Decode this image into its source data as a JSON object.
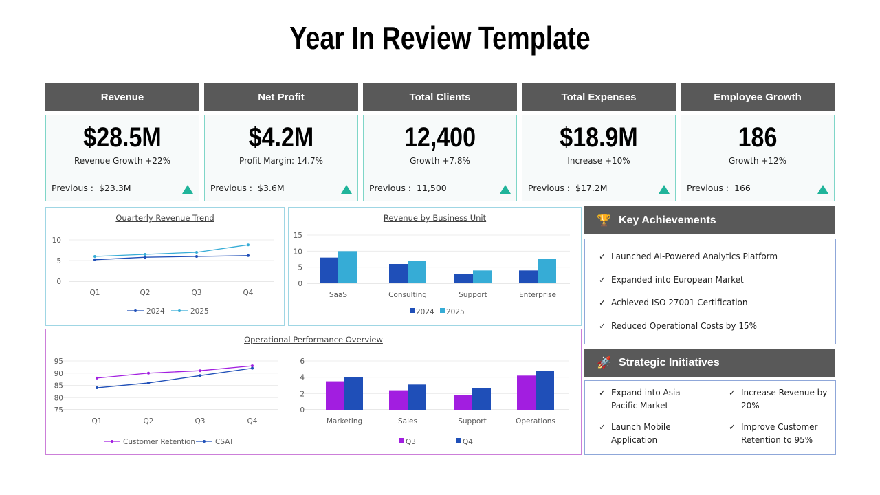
{
  "title": "Year In Review Template",
  "kpis": [
    {
      "label": "Revenue",
      "value": "$28.5M",
      "sub": "Revenue Growth +22%",
      "prev_label": "Previous :",
      "prev": "$23.3M",
      "trend": "up"
    },
    {
      "label": "Net Profit",
      "value": "$4.2M",
      "sub": "Profit Margin: 14.7%",
      "prev_label": "Previous :",
      "prev": "$3.6M",
      "trend": "up"
    },
    {
      "label": "Total Clients",
      "value": "12,400",
      "sub": "Growth +7.8%",
      "prev_label": "Previous :",
      "prev": "11,500",
      "trend": "up"
    },
    {
      "label": "Total Expenses",
      "value": "$18.9M",
      "sub": "Increase +10%",
      "prev_label": "Previous :",
      "prev": "$17.2M",
      "trend": "up"
    },
    {
      "label": "Employee Growth",
      "value": "186",
      "sub": "Growth +12%",
      "prev_label": "Previous :",
      "prev": "166",
      "trend": "up"
    }
  ],
  "colors": {
    "header": "#595959",
    "accent_up": "#20b49a",
    "blue_dark": "#1f4fb8",
    "blue_light": "#36acd6",
    "purple": "#a21ee0"
  },
  "achievements": {
    "title": "Key Achievements",
    "icon": "trophy-icon",
    "items": [
      "Launched AI-Powered Analytics Platform",
      "Expanded into European Market",
      "Achieved ISO 27001 Certification",
      "Reduced Operational Costs by 15%"
    ]
  },
  "initiatives": {
    "title": "Strategic Initiatives",
    "icon": "rocket-icon",
    "items": [
      "Expand into Asia-Pacific Market",
      "Increase Revenue by 20%",
      "Launch Mobile Application",
      "Improve Customer Retention to 95%"
    ]
  },
  "operational_title": "Operational Performance Overview",
  "chart_data": [
    {
      "type": "line",
      "title": "Quarterly Revenue Trend",
      "categories": [
        "Q1",
        "Q2",
        "Q3",
        "Q4"
      ],
      "ylim": [
        0,
        10
      ],
      "yticks": [
        0,
        5,
        10
      ],
      "grid": true,
      "legend": "bottom",
      "series": [
        {
          "name": "2024",
          "values": [
            5.2,
            5.8,
            6.0,
            6.2
          ],
          "color": "#1f4fb8"
        },
        {
          "name": "2025",
          "values": [
            6.0,
            6.5,
            7.0,
            8.8
          ],
          "color": "#36acd6"
        }
      ]
    },
    {
      "type": "bar",
      "title": "Revenue by Business Unit",
      "categories": [
        "SaaS",
        "Consulting",
        "Support",
        "Enterprise"
      ],
      "ylim": [
        0,
        15
      ],
      "yticks": [
        0,
        5,
        10,
        15
      ],
      "grid": true,
      "legend": "bottom",
      "series": [
        {
          "name": "2024",
          "values": [
            8,
            6,
            3,
            4
          ],
          "color": "#1f4fb8"
        },
        {
          "name": "2025",
          "values": [
            10,
            7,
            4,
            7.5
          ],
          "color": "#36acd6"
        }
      ]
    },
    {
      "type": "line",
      "categories": [
        "Q1",
        "Q2",
        "Q3",
        "Q4"
      ],
      "ylim": [
        75,
        95
      ],
      "yticks": [
        75,
        80,
        85,
        90,
        95
      ],
      "grid": true,
      "legend": "bottom",
      "series": [
        {
          "name": "Customer Retention",
          "values": [
            88,
            90,
            91,
            93
          ],
          "color": "#a21ee0"
        },
        {
          "name": "CSAT",
          "values": [
            84,
            86,
            89,
            92
          ],
          "color": "#1f4fb8"
        }
      ]
    },
    {
      "type": "bar",
      "categories": [
        "Marketing",
        "Sales",
        "Support",
        "Operations"
      ],
      "ylim": [
        0,
        6
      ],
      "yticks": [
        0,
        2,
        4,
        6
      ],
      "grid": true,
      "legend": "bottom",
      "series": [
        {
          "name": "Q3",
          "values": [
            3.5,
            2.4,
            1.8,
            4.2
          ],
          "color": "#a21ee0"
        },
        {
          "name": "Q4",
          "values": [
            4.0,
            3.1,
            2.7,
            4.8
          ],
          "color": "#1f4fb8"
        }
      ]
    }
  ]
}
